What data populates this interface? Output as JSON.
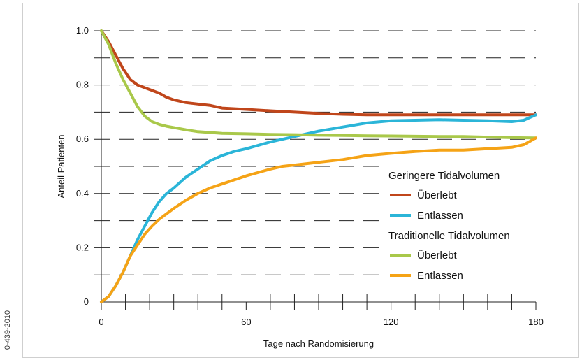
{
  "side_code": "0-439-2010",
  "chart_data": {
    "type": "line",
    "title": "",
    "xlabel": "Tage nach Randomisierung",
    "ylabel": "Anteil Patienten",
    "xlim": [
      0,
      180
    ],
    "ylim": [
      0,
      1.0
    ],
    "x_ticks": [
      0,
      60,
      120,
      180
    ],
    "x_tick_labels": [
      "0",
      "60",
      "120",
      "180"
    ],
    "y_ticks": [
      0,
      0.2,
      0.4,
      0.6,
      0.8,
      1.0
    ],
    "y_tick_labels": [
      "0",
      "0.2",
      "0.4",
      "0.6",
      "0.8",
      "1.0"
    ],
    "grid": "horizontal dashes at every 0.1",
    "legend_position": "right, inside plot",
    "legend_groups": [
      {
        "title": "Geringere Tidalvolumen",
        "entries": [
          "Überlebt",
          "Entlassen"
        ]
      },
      {
        "title": "Traditionelle Tidalvolumen",
        "entries": [
          "Überlebt",
          "Entlassen"
        ]
      }
    ],
    "series": [
      {
        "group": "Geringere Tidalvolumen",
        "name": "Überlebt",
        "color": "#c0461b",
        "x": [
          0,
          3,
          6,
          9,
          12,
          15,
          18,
          21,
          24,
          27,
          30,
          35,
          40,
          45,
          50,
          60,
          70,
          80,
          90,
          100,
          110,
          120,
          130,
          140,
          150,
          160,
          170,
          180
        ],
        "y": [
          1.0,
          0.96,
          0.91,
          0.86,
          0.82,
          0.8,
          0.79,
          0.78,
          0.77,
          0.755,
          0.745,
          0.735,
          0.73,
          0.725,
          0.715,
          0.71,
          0.705,
          0.7,
          0.695,
          0.692,
          0.69,
          0.69,
          0.69,
          0.69,
          0.69,
          0.69,
          0.69,
          0.69
        ]
      },
      {
        "group": "Geringere Tidalvolumen",
        "name": "Entlassen",
        "color": "#2bb5d8",
        "x": [
          0,
          3,
          6,
          9,
          12,
          15,
          18,
          21,
          24,
          27,
          30,
          35,
          40,
          45,
          50,
          55,
          60,
          70,
          80,
          90,
          100,
          110,
          120,
          130,
          140,
          150,
          160,
          170,
          175,
          180
        ],
        "y": [
          0,
          0.02,
          0.06,
          0.11,
          0.17,
          0.23,
          0.28,
          0.33,
          0.37,
          0.4,
          0.42,
          0.46,
          0.49,
          0.52,
          0.54,
          0.555,
          0.565,
          0.59,
          0.61,
          0.63,
          0.645,
          0.66,
          0.668,
          0.67,
          0.672,
          0.67,
          0.668,
          0.665,
          0.67,
          0.69
        ]
      },
      {
        "group": "Traditionelle Tidalvolumen",
        "name": "Überlebt",
        "color": "#a9c84a",
        "x": [
          0,
          3,
          6,
          9,
          12,
          15,
          18,
          21,
          24,
          27,
          30,
          35,
          40,
          50,
          60,
          70,
          80,
          90,
          100,
          110,
          120,
          130,
          140,
          150,
          160,
          170,
          180
        ],
        "y": [
          1.0,
          0.95,
          0.88,
          0.82,
          0.77,
          0.72,
          0.685,
          0.665,
          0.655,
          0.648,
          0.643,
          0.635,
          0.628,
          0.622,
          0.62,
          0.618,
          0.617,
          0.615,
          0.614,
          0.613,
          0.612,
          0.611,
          0.61,
          0.61,
          0.608,
          0.606,
          0.605
        ]
      },
      {
        "group": "Traditionelle Tidalvolumen",
        "name": "Entlassen",
        "color": "#f5a316",
        "x": [
          0,
          3,
          6,
          9,
          12,
          15,
          18,
          21,
          24,
          27,
          30,
          35,
          40,
          45,
          50,
          60,
          70,
          75,
          80,
          90,
          100,
          110,
          120,
          130,
          140,
          150,
          160,
          170,
          175,
          180
        ],
        "y": [
          0,
          0.02,
          0.06,
          0.11,
          0.17,
          0.21,
          0.25,
          0.28,
          0.305,
          0.325,
          0.345,
          0.375,
          0.4,
          0.42,
          0.435,
          0.465,
          0.49,
          0.5,
          0.505,
          0.515,
          0.525,
          0.54,
          0.548,
          0.555,
          0.56,
          0.56,
          0.565,
          0.57,
          0.58,
          0.605
        ]
      }
    ]
  }
}
